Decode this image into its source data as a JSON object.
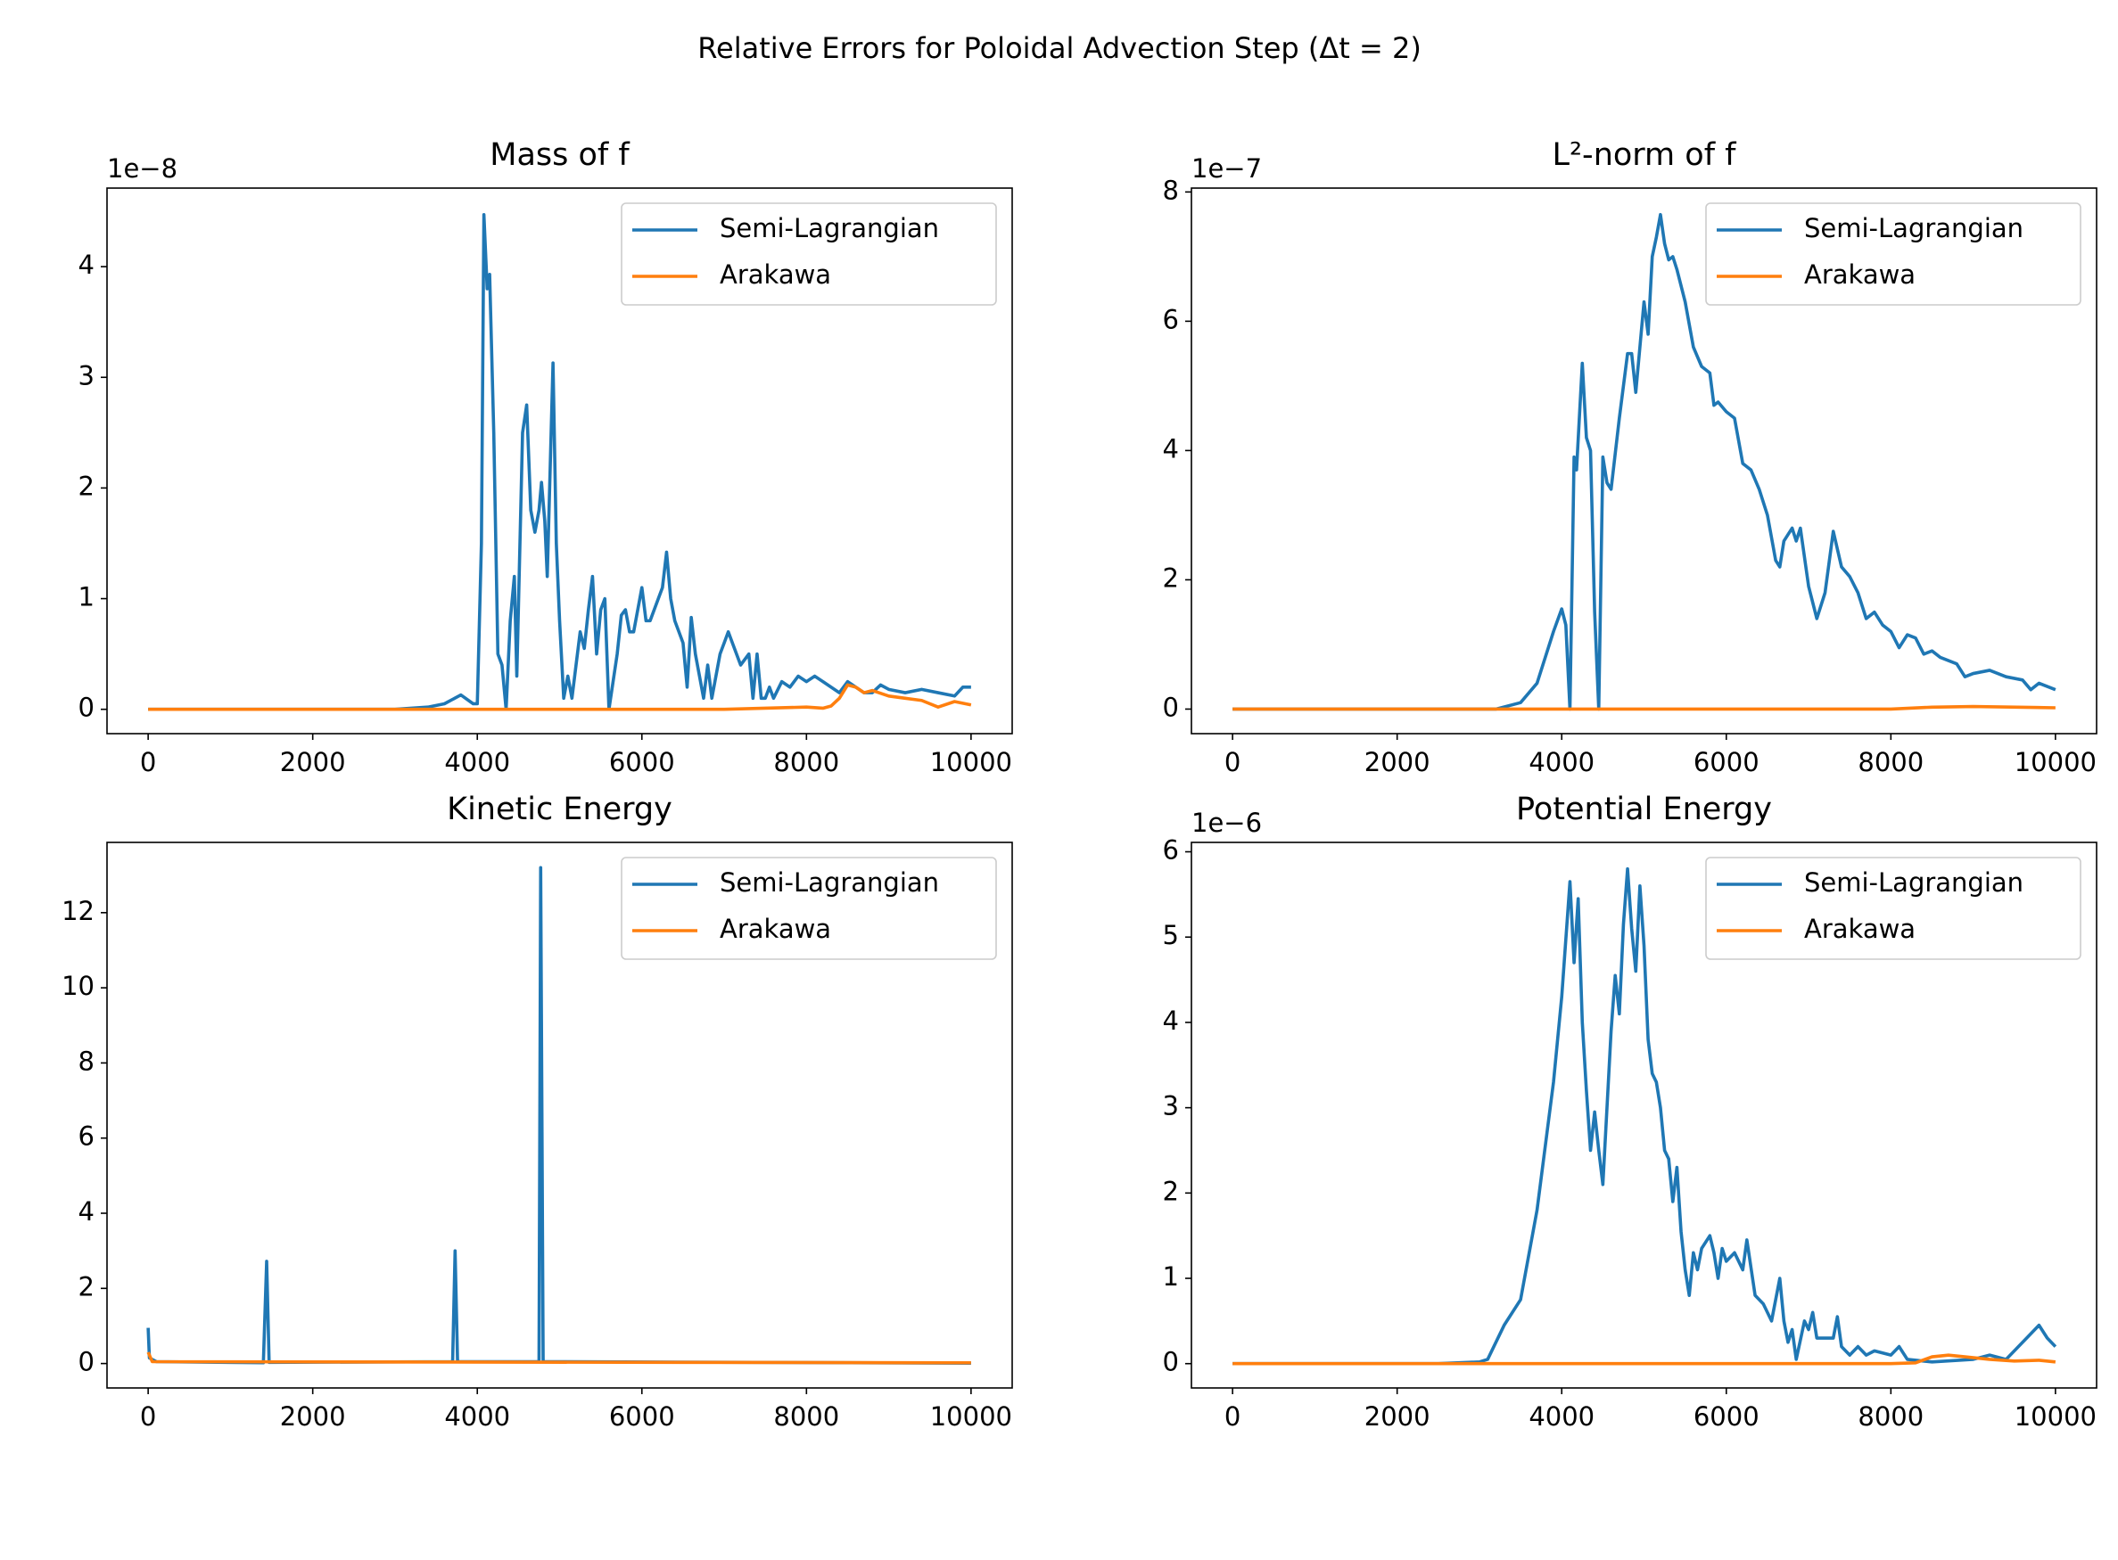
{
  "title": "Relative Errors for Poloidal Advection Step (Δt = 2)",
  "chart_data": [
    {
      "type": "line",
      "title": "Mass of f",
      "offset_label": "1e−8",
      "legend": "upper right",
      "xlim": [
        -500,
        10500
      ],
      "ylim": [
        -0.22,
        4.71
      ],
      "xticks": [
        0,
        2000,
        4000,
        6000,
        8000,
        10000
      ],
      "yticks": [
        0,
        1,
        2,
        3,
        4
      ],
      "series": [
        {
          "name": "Semi-Lagrangian",
          "color": "#1f77b4",
          "x": [
            0,
            3000,
            3400,
            3600,
            3800,
            3950,
            4000,
            4050,
            4080,
            4120,
            4150,
            4200,
            4250,
            4300,
            4350,
            4400,
            4450,
            4480,
            4550,
            4600,
            4650,
            4700,
            4750,
            4780,
            4820,
            4850,
            4920,
            4960,
            5000,
            5050,
            5100,
            5150,
            5200,
            5250,
            5300,
            5350,
            5400,
            5450,
            5500,
            5550,
            5600,
            5700,
            5750,
            5800,
            5850,
            5900,
            6000,
            6050,
            6100,
            6200,
            6250,
            6300,
            6350,
            6400,
            6500,
            6550,
            6600,
            6650,
            6700,
            6750,
            6800,
            6850,
            6950,
            7000,
            7050,
            7100,
            7200,
            7300,
            7350,
            7400,
            7450,
            7500,
            7550,
            7600,
            7700,
            7800,
            7900,
            8000,
            8100,
            8200,
            8300,
            8400,
            8500,
            8600,
            8700,
            8800,
            8900,
            9000,
            9200,
            9400,
            9600,
            9800,
            9900,
            10000
          ],
          "values": [
            0,
            0,
            0.02,
            0.05,
            0.13,
            0.05,
            0.05,
            1.5,
            4.47,
            3.8,
            3.93,
            2.5,
            0.5,
            0.4,
            0,
            0.8,
            1.2,
            0.3,
            2.5,
            2.75,
            1.8,
            1.6,
            1.8,
            2.05,
            1.7,
            1.2,
            3.13,
            1.5,
            0.8,
            0.1,
            0.3,
            0.1,
            0.4,
            0.7,
            0.55,
            0.9,
            1.2,
            0.5,
            0.9,
            1.0,
            0,
            0.5,
            0.85,
            0.9,
            0.7,
            0.7,
            1.1,
            0.8,
            0.8,
            1.0,
            1.1,
            1.42,
            1.0,
            0.8,
            0.6,
            0.2,
            0.83,
            0.5,
            0.3,
            0.1,
            0.4,
            0.1,
            0.5,
            0.6,
            0.7,
            0.6,
            0.4,
            0.5,
            0.1,
            0.5,
            0.1,
            0.1,
            0.2,
            0.1,
            0.25,
            0.2,
            0.3,
            0.25,
            0.3,
            0.25,
            0.2,
            0.15,
            0.25,
            0.2,
            0.15,
            0.15,
            0.22,
            0.18,
            0.15,
            0.18,
            0.15,
            0.12,
            0.2,
            0.2
          ]
        },
        {
          "name": "Arakawa",
          "color": "#ff7f0e",
          "x": [
            0,
            7000,
            8000,
            8200,
            8300,
            8400,
            8500,
            8600,
            8700,
            8800,
            9000,
            9200,
            9400,
            9600,
            9800,
            10000
          ],
          "values": [
            0,
            0,
            0.02,
            0.01,
            0.03,
            0.1,
            0.22,
            0.2,
            0.15,
            0.17,
            0.12,
            0.1,
            0.08,
            0.02,
            0.07,
            0.04
          ]
        }
      ]
    },
    {
      "type": "line",
      "title": "L²-norm of f",
      "offset_label": "1e−7",
      "legend": "upper right",
      "xlim": [
        -500,
        10500
      ],
      "ylim": [
        -0.38,
        8.06
      ],
      "xticks": [
        0,
        2000,
        4000,
        6000,
        8000,
        10000
      ],
      "yticks": [
        0,
        2,
        4,
        6,
        8
      ],
      "series": [
        {
          "name": "Semi-Lagrangian",
          "color": "#1f77b4",
          "x": [
            0,
            3200,
            3500,
            3700,
            3900,
            4000,
            4050,
            4100,
            4150,
            4180,
            4250,
            4300,
            4350,
            4400,
            4450,
            4500,
            4550,
            4600,
            4700,
            4800,
            4850,
            4900,
            4950,
            5000,
            5050,
            5100,
            5150,
            5200,
            5250,
            5300,
            5350,
            5400,
            5500,
            5600,
            5700,
            5800,
            5850,
            5900,
            6000,
            6100,
            6200,
            6300,
            6400,
            6500,
            6600,
            6650,
            6700,
            6800,
            6850,
            6900,
            7000,
            7100,
            7200,
            7300,
            7400,
            7500,
            7600,
            7700,
            7800,
            7900,
            8000,
            8100,
            8200,
            8300,
            8400,
            8500,
            8600,
            8700,
            8800,
            8900,
            9000,
            9200,
            9400,
            9600,
            9700,
            9800,
            9900,
            10000
          ],
          "values": [
            0,
            0,
            0.1,
            0.4,
            1.2,
            1.55,
            1.3,
            0,
            3.9,
            3.7,
            5.35,
            4.2,
            4.0,
            1.5,
            0,
            3.9,
            3.5,
            3.4,
            4.5,
            5.5,
            5.5,
            4.9,
            5.6,
            6.3,
            5.8,
            7.0,
            7.3,
            7.65,
            7.2,
            6.95,
            7.0,
            6.8,
            6.3,
            5.6,
            5.3,
            5.2,
            4.7,
            4.75,
            4.6,
            4.5,
            3.8,
            3.7,
            3.4,
            3.0,
            2.3,
            2.2,
            2.6,
            2.8,
            2.6,
            2.8,
            1.9,
            1.4,
            1.8,
            2.75,
            2.2,
            2.05,
            1.8,
            1.4,
            1.5,
            1.3,
            1.2,
            0.95,
            1.15,
            1.1,
            0.85,
            0.9,
            0.8,
            0.75,
            0.7,
            0.5,
            0.55,
            0.6,
            0.5,
            0.45,
            0.3,
            0.4,
            0.35,
            0.3
          ]
        },
        {
          "name": "Arakawa",
          "color": "#ff7f0e",
          "x": [
            0,
            8000,
            8500,
            9000,
            10000
          ],
          "values": [
            0,
            0,
            0.03,
            0.04,
            0.02
          ]
        }
      ]
    },
    {
      "type": "line",
      "title": "Kinetic Energy",
      "legend": "upper right",
      "xlim": [
        -500,
        10500
      ],
      "ylim": [
        -0.65,
        13.87
      ],
      "xticks": [
        0,
        2000,
        4000,
        6000,
        8000,
        10000
      ],
      "yticks": [
        0,
        2,
        4,
        6,
        8,
        10,
        12
      ],
      "series": [
        {
          "name": "Semi-Lagrangian",
          "color": "#1f77b4",
          "x": [
            0,
            15,
            100,
            1400,
            1440,
            1470,
            3700,
            3730,
            3760,
            4750,
            4770,
            4800,
            10000
          ],
          "values": [
            0.95,
            0.15,
            0.05,
            0.02,
            2.72,
            0.03,
            0.05,
            3.0,
            0.05,
            0.05,
            13.2,
            0.05,
            0.01
          ]
        },
        {
          "name": "Arakawa",
          "color": "#ff7f0e",
          "x": [
            0,
            50,
            10000
          ],
          "values": [
            0.3,
            0.05,
            0.02
          ]
        }
      ]
    },
    {
      "type": "line",
      "title": "Potential Energy",
      "offset_label": "1e−6",
      "legend": "upper right",
      "xlim": [
        -500,
        10500
      ],
      "ylim": [
        -0.285,
        6.11
      ],
      "xticks": [
        0,
        2000,
        4000,
        6000,
        8000,
        10000
      ],
      "yticks": [
        0,
        1,
        2,
        3,
        4,
        5,
        6
      ],
      "series": [
        {
          "name": "Semi-Lagrangian",
          "color": "#1f77b4",
          "x": [
            0,
            2500,
            3000,
            3100,
            3300,
            3500,
            3700,
            3900,
            4000,
            4100,
            4150,
            4200,
            4250,
            4300,
            4350,
            4400,
            4450,
            4500,
            4550,
            4600,
            4650,
            4700,
            4750,
            4800,
            4850,
            4900,
            4950,
            5000,
            5050,
            5100,
            5150,
            5200,
            5250,
            5300,
            5350,
            5400,
            5450,
            5500,
            5550,
            5600,
            5650,
            5700,
            5800,
            5850,
            5900,
            5950,
            6000,
            6100,
            6200,
            6250,
            6350,
            6450,
            6550,
            6650,
            6700,
            6750,
            6800,
            6850,
            6950,
            7000,
            7050,
            7100,
            7200,
            7300,
            7350,
            7400,
            7500,
            7600,
            7700,
            7800,
            8000,
            8100,
            8200,
            8500,
            9000,
            9200,
            9400,
            9700,
            9800,
            9900,
            10000
          ],
          "values": [
            0,
            0,
            0.02,
            0.05,
            0.45,
            0.75,
            1.8,
            3.3,
            4.3,
            5.65,
            4.7,
            5.45,
            4.0,
            3.2,
            2.5,
            2.95,
            2.5,
            2.1,
            3.0,
            3.9,
            4.55,
            4.1,
            5.15,
            5.8,
            5.1,
            4.6,
            5.6,
            4.9,
            3.8,
            3.4,
            3.3,
            3.0,
            2.5,
            2.4,
            1.9,
            2.3,
            1.55,
            1.1,
            0.8,
            1.3,
            1.1,
            1.35,
            1.5,
            1.3,
            1.0,
            1.35,
            1.2,
            1.3,
            1.1,
            1.45,
            0.8,
            0.7,
            0.5,
            1.0,
            0.5,
            0.25,
            0.4,
            0.05,
            0.5,
            0.4,
            0.6,
            0.3,
            0.3,
            0.3,
            0.55,
            0.2,
            0.1,
            0.2,
            0.1,
            0.15,
            0.1,
            0.2,
            0.05,
            0.02,
            0.05,
            0.1,
            0.05,
            0.35,
            0.45,
            0.3,
            0.2
          ]
        },
        {
          "name": "Arakawa",
          "color": "#ff7f0e",
          "x": [
            0,
            8000,
            8300,
            8500,
            8700,
            8900,
            9200,
            9500,
            9800,
            10000
          ],
          "values": [
            0,
            0,
            0.01,
            0.08,
            0.1,
            0.08,
            0.05,
            0.03,
            0.04,
            0.02
          ]
        }
      ]
    }
  ]
}
